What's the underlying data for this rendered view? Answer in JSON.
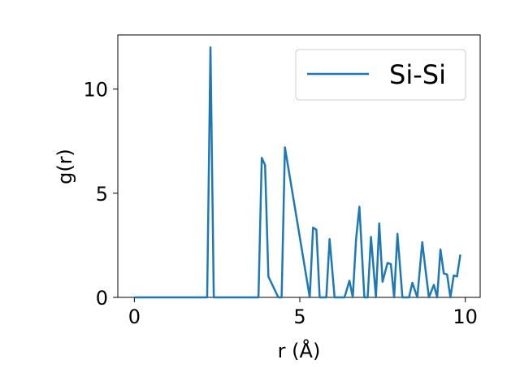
{
  "chart_data": {
    "type": "line",
    "title": "",
    "xlabel": "r (Å)",
    "ylabel": "g(r)",
    "xlim": [
      -0.5,
      10.45
    ],
    "ylim": [
      0,
      12.6
    ],
    "xticks": [
      0,
      5,
      10
    ],
    "yticks": [
      0,
      5,
      10
    ],
    "grid": false,
    "legend_position": "top-right",
    "series": [
      {
        "name": "Si-Si",
        "color": "#1f77b4",
        "x": [
          0.0,
          2.2,
          2.3,
          2.4,
          3.75,
          3.85,
          3.95,
          4.05,
          4.35,
          4.45,
          4.55,
          5.3,
          5.4,
          5.5,
          5.6,
          5.8,
          5.9,
          6.05,
          6.25,
          6.35,
          6.5,
          6.6,
          6.7,
          6.8,
          6.95,
          7.05,
          7.15,
          7.3,
          7.4,
          7.5,
          7.65,
          7.75,
          7.85,
          7.95,
          8.1,
          8.3,
          8.4,
          8.55,
          8.7,
          8.8,
          8.9,
          9.05,
          9.15,
          9.25,
          9.35,
          9.45,
          9.55,
          9.65,
          9.75,
          9.85
        ],
        "y": [
          0.0,
          0.0,
          12.0,
          0.0,
          0.0,
          6.7,
          6.35,
          1.0,
          0.0,
          0.0,
          7.2,
          0.0,
          3.35,
          3.25,
          0.0,
          0.0,
          2.8,
          0.0,
          0.0,
          0.0,
          0.8,
          0.0,
          2.8,
          4.35,
          0.0,
          0.0,
          2.9,
          0.0,
          3.55,
          0.75,
          1.65,
          1.6,
          0.0,
          3.05,
          0.0,
          0.0,
          0.7,
          0.0,
          2.65,
          1.3,
          0.0,
          0.6,
          0.0,
          2.3,
          1.15,
          1.1,
          0.0,
          1.05,
          1.0,
          2.05
        ]
      }
    ]
  }
}
